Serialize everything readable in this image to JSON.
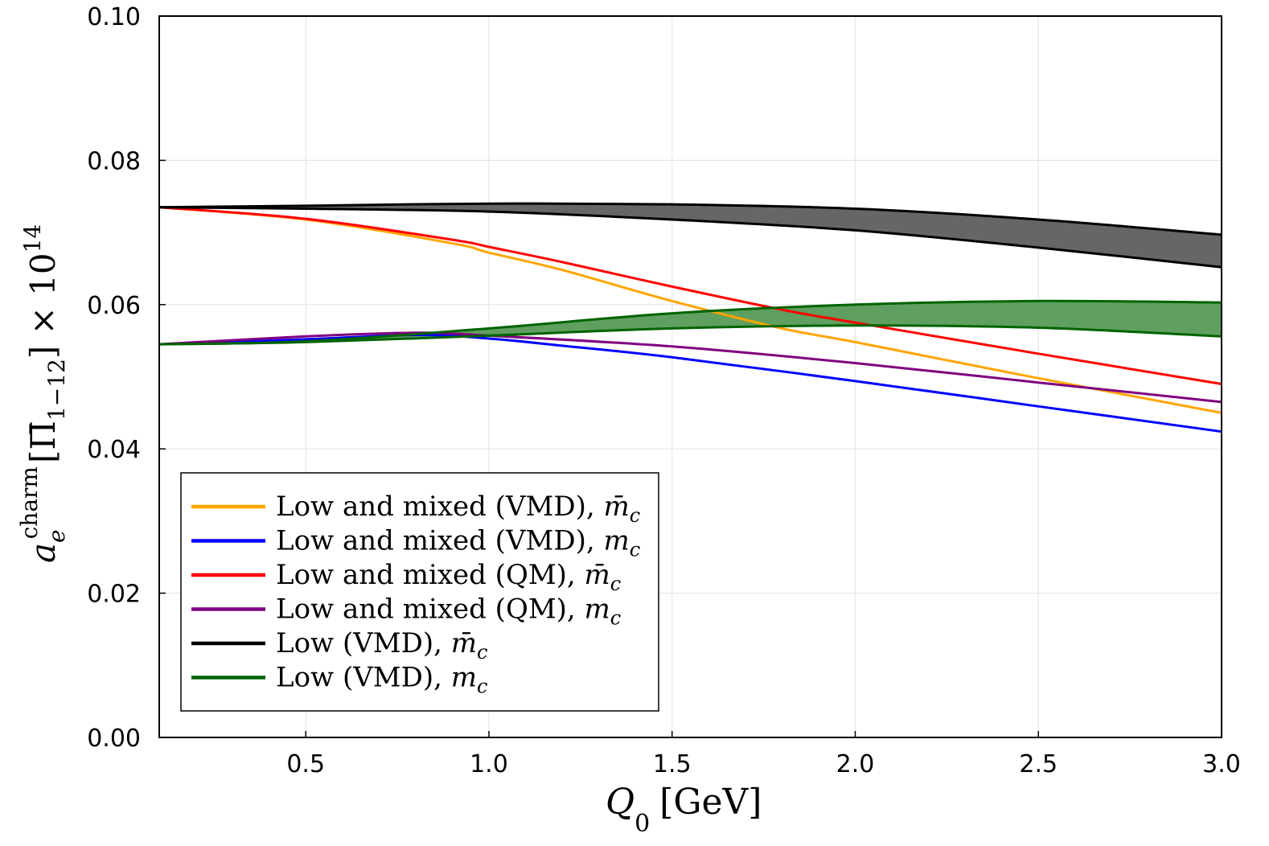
{
  "chart_data": {
    "type": "line",
    "xlabel": {
      "main": "Q",
      "sub": "0",
      "unit": "[GeV]"
    },
    "ylabel": {
      "main": "a",
      "sub": "e",
      "sup": "charm",
      "bracket": "[Π̄",
      "bracket_sub": "1−12",
      "bracket_close": "] × 10",
      "exp": "14"
    },
    "xlim": [
      0.1,
      3.0
    ],
    "ylim": [
      0.0,
      0.1
    ],
    "xticks": [
      "0.5",
      "1.0",
      "1.5",
      "2.0",
      "2.5",
      "3.0"
    ],
    "xtick_values": [
      0.5,
      1.0,
      1.5,
      2.0,
      2.5,
      3.0
    ],
    "yticks": [
      "0.00",
      "0.02",
      "0.04",
      "0.06",
      "0.08",
      "0.10"
    ],
    "ytick_values": [
      0.0,
      0.02,
      0.04,
      0.06,
      0.08,
      0.1
    ],
    "grid": true,
    "legend_position": "bottom-left",
    "series": [
      {
        "name": "Low and mixed (VMD), m̄_c",
        "label_main": "Low and mixed (VMD), ",
        "label_sym": "m̄",
        "label_sub": "c",
        "color": "#ffa500",
        "x": [
          0.1,
          0.5,
          0.9,
          1.0,
          1.2,
          1.5,
          1.8,
          2.0,
          2.5,
          3.0
        ],
        "y": [
          0.0735,
          0.0718,
          0.0685,
          0.0672,
          0.0648,
          0.0605,
          0.0567,
          0.0548,
          0.0498,
          0.045
        ]
      },
      {
        "name": "Low and mixed (VMD), m_c",
        "label_main": "Low and mixed (VMD), ",
        "label_sym": "m",
        "label_sub": "c",
        "color": "#0000ff",
        "x": [
          0.1,
          0.5,
          0.8,
          1.0,
          1.2,
          1.5,
          2.0,
          2.5,
          3.0
        ],
        "y": [
          0.0545,
          0.0552,
          0.0558,
          0.0553,
          0.0543,
          0.0527,
          0.0494,
          0.0459,
          0.0424
        ]
      },
      {
        "name": "Low and mixed (QM), m̄_c",
        "label_main": "Low and mixed (QM), ",
        "label_sym": "m̄",
        "label_sub": "c",
        "color": "#ff0000",
        "x": [
          0.1,
          0.5,
          0.9,
          1.0,
          1.2,
          1.5,
          1.8,
          2.0,
          2.5,
          3.0
        ],
        "y": [
          0.0735,
          0.0719,
          0.069,
          0.068,
          0.0659,
          0.0625,
          0.0593,
          0.0575,
          0.0532,
          0.049
        ]
      },
      {
        "name": "Low and mixed (QM), m_c",
        "label_main": "Low and mixed (QM), ",
        "label_sym": "m",
        "label_sub": "c",
        "color": "#800080",
        "x": [
          0.1,
          0.5,
          0.8,
          1.0,
          1.5,
          2.0,
          2.5,
          3.0
        ],
        "y": [
          0.0545,
          0.0556,
          0.0561,
          0.0557,
          0.0542,
          0.0519,
          0.0492,
          0.0465
        ]
      },
      {
        "name": "Low (VMD), m̄_c",
        "label_main": "Low (VMD), ",
        "label_sym": "m̄",
        "label_sub": "c",
        "color": "#000000",
        "band": true,
        "fill": "#666666",
        "x": [
          0.1,
          0.5,
          1.0,
          1.5,
          2.0,
          2.5,
          3.0
        ],
        "upper": [
          0.0735,
          0.0737,
          0.074,
          0.0739,
          0.0733,
          0.0718,
          0.0697
        ],
        "lower": [
          0.0735,
          0.0733,
          0.0729,
          0.0718,
          0.0703,
          0.0679,
          0.0652
        ]
      },
      {
        "name": "Low (VMD), m_c",
        "label_main": "Low (VMD), ",
        "label_sym": "m",
        "label_sub": "c",
        "color": "#006400",
        "band": true,
        "fill": "#5f9f5f",
        "x": [
          0.1,
          0.5,
          1.0,
          1.5,
          2.0,
          2.5,
          3.0
        ],
        "upper": [
          0.0545,
          0.0549,
          0.0567,
          0.0588,
          0.06,
          0.0605,
          0.0603
        ],
        "lower": [
          0.0545,
          0.0548,
          0.0557,
          0.0567,
          0.0571,
          0.0568,
          0.0556
        ]
      }
    ]
  }
}
